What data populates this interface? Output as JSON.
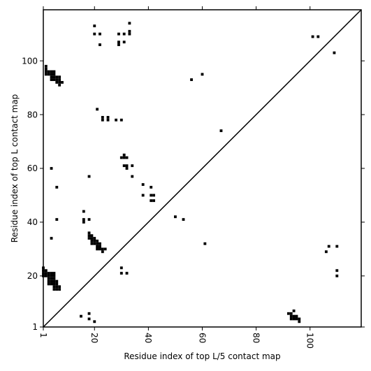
{
  "chart_data": {
    "type": "scatter",
    "title": "",
    "xlabel": "Residue index of top L/5 contact map",
    "ylabel": "Residue index of top L contact map",
    "xlim": [
      1,
      119
    ],
    "ylim": [
      1,
      119
    ],
    "xticks": [
      1,
      20,
      40,
      60,
      80,
      100
    ],
    "yticks": [
      1,
      20,
      40,
      60,
      80,
      100
    ],
    "diagonal": true,
    "marker": "filled-square",
    "marker_color": "#000000",
    "series": [
      {
        "label_region": "upper-left",
        "points": [
          [
            2,
            98
          ],
          [
            2,
            97
          ],
          [
            2,
            96
          ],
          [
            3,
            96
          ],
          [
            4,
            96
          ],
          [
            5,
            96
          ],
          [
            2,
            95
          ],
          [
            3,
            95
          ],
          [
            4,
            95
          ],
          [
            5,
            95
          ],
          [
            4,
            94
          ],
          [
            5,
            94
          ],
          [
            6,
            94
          ],
          [
            7,
            94
          ],
          [
            4,
            93
          ],
          [
            5,
            93
          ],
          [
            6,
            93
          ],
          [
            7,
            93
          ],
          [
            6,
            92
          ],
          [
            7,
            92
          ],
          [
            8,
            92
          ],
          [
            7,
            91
          ],
          [
            20,
            113
          ],
          [
            20,
            110
          ],
          [
            22,
            110
          ],
          [
            22,
            106
          ],
          [
            29,
            110
          ],
          [
            31,
            110
          ],
          [
            29,
            107
          ],
          [
            31,
            107
          ],
          [
            29,
            106
          ],
          [
            33,
            114
          ],
          [
            33,
            111
          ],
          [
            33,
            110
          ],
          [
            56,
            93
          ],
          [
            60,
            95
          ],
          [
            21,
            82
          ],
          [
            23,
            79
          ],
          [
            23,
            78
          ],
          [
            25,
            79
          ],
          [
            25,
            78
          ],
          [
            28,
            78
          ],
          [
            30,
            78
          ],
          [
            67,
            74
          ],
          [
            4,
            60
          ],
          [
            18,
            57
          ],
          [
            6,
            53
          ],
          [
            30,
            64
          ],
          [
            31,
            64
          ],
          [
            32,
            64
          ],
          [
            31,
            65
          ],
          [
            31,
            61
          ],
          [
            32,
            61
          ],
          [
            32,
            60
          ],
          [
            34,
            61
          ],
          [
            34,
            57
          ],
          [
            38,
            54
          ],
          [
            41,
            53
          ],
          [
            38,
            50
          ],
          [
            41,
            50
          ],
          [
            42,
            50
          ],
          [
            41,
            48
          ],
          [
            42,
            48
          ],
          [
            16,
            44
          ],
          [
            16,
            41
          ],
          [
            16,
            40
          ],
          [
            18,
            41
          ],
          [
            6,
            41
          ],
          [
            50,
            42
          ],
          [
            53,
            41
          ],
          [
            18,
            36
          ],
          [
            18,
            35
          ],
          [
            19,
            35
          ],
          [
            18,
            34
          ],
          [
            19,
            34
          ],
          [
            20,
            34
          ],
          [
            4,
            34
          ],
          [
            19,
            33
          ],
          [
            20,
            33
          ],
          [
            21,
            33
          ],
          [
            19,
            32
          ],
          [
            20,
            32
          ],
          [
            21,
            32
          ],
          [
            22,
            32
          ],
          [
            21,
            31
          ],
          [
            22,
            31
          ],
          [
            21,
            30
          ],
          [
            22,
            30
          ],
          [
            23,
            30
          ],
          [
            24,
            30
          ],
          [
            23,
            29
          ],
          [
            61,
            32
          ],
          [
            1,
            23
          ],
          [
            1,
            22
          ],
          [
            2,
            22
          ],
          [
            1,
            21
          ],
          [
            2,
            21
          ],
          [
            3,
            21
          ],
          [
            4,
            21
          ],
          [
            5,
            21
          ],
          [
            1,
            20
          ],
          [
            2,
            20
          ],
          [
            3,
            20
          ],
          [
            4,
            20
          ],
          [
            5,
            20
          ],
          [
            3,
            19
          ],
          [
            4,
            19
          ],
          [
            5,
            19
          ],
          [
            3,
            18
          ],
          [
            4,
            18
          ],
          [
            5,
            18
          ],
          [
            6,
            18
          ],
          [
            3,
            17
          ],
          [
            4,
            17
          ],
          [
            5,
            17
          ],
          [
            6,
            17
          ],
          [
            5,
            16
          ],
          [
            6,
            16
          ],
          [
            7,
            16
          ],
          [
            5,
            15
          ],
          [
            6,
            15
          ],
          [
            7,
            15
          ],
          [
            30,
            23
          ],
          [
            30,
            21
          ],
          [
            32,
            21
          ],
          [
            15,
            5
          ],
          [
            18,
            6
          ],
          [
            18,
            4
          ],
          [
            20,
            3
          ]
        ]
      },
      {
        "label_region": "lower-right",
        "points": [
          [
            107,
            31
          ],
          [
            110,
            31
          ],
          [
            106,
            29
          ],
          [
            110,
            22
          ],
          [
            110,
            20
          ],
          [
            101,
            109
          ],
          [
            103,
            109
          ],
          [
            109,
            103
          ],
          [
            92,
            6
          ],
          [
            93,
            6
          ],
          [
            94,
            7
          ],
          [
            93,
            5
          ],
          [
            94,
            5
          ],
          [
            95,
            5
          ],
          [
            93,
            4
          ],
          [
            94,
            4
          ],
          [
            95,
            4
          ],
          [
            96,
            4
          ],
          [
            96,
            3
          ]
        ]
      }
    ]
  }
}
